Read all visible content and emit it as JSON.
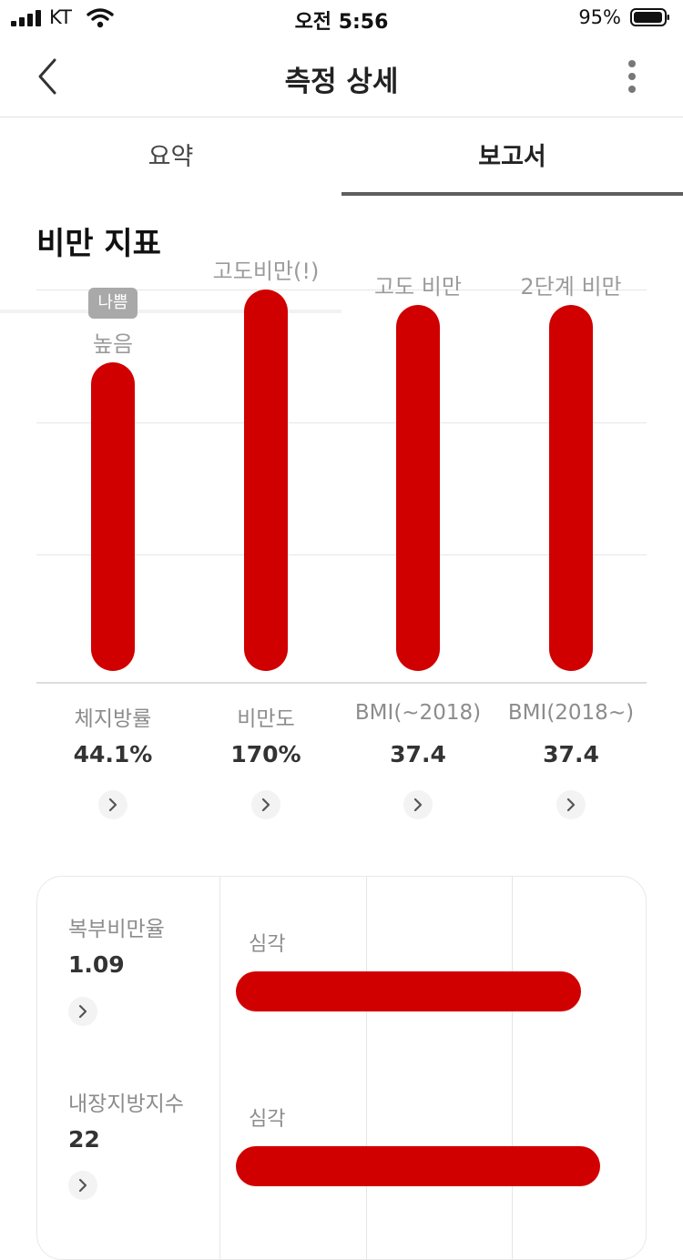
{
  "status_bar": {
    "carrier": "KT",
    "time": "오전 5:56",
    "battery": "95%"
  },
  "nav": {
    "title": "측정 상세"
  },
  "tabs": [
    {
      "label": "요약",
      "active": false
    },
    {
      "label": "보고서",
      "active": true
    }
  ],
  "section": {
    "title": "비만 지표"
  },
  "chart_data": {
    "type": "bar",
    "categories": [
      "체지방률",
      "비만도",
      "BMI(~2018)",
      "BMI(2018~)"
    ],
    "levels": [
      0.81,
      1.0,
      0.96,
      0.96
    ],
    "level_labels": [
      "높음",
      "고도비만(!)",
      "고도 비만",
      "2단계 비만"
    ],
    "badges": [
      "나쁨",
      "",
      "",
      ""
    ],
    "values": [
      "44.1%",
      "170%",
      "37.4",
      "37.4"
    ],
    "grid": true,
    "colors": {
      "bar": "#d10000"
    }
  },
  "card": {
    "items": [
      {
        "name": "복부비만율",
        "value": "1.09",
        "level": "심각",
        "fill": 0.92
      },
      {
        "name": "내장지방지수",
        "value": "22",
        "level": "심각",
        "fill": 0.97
      }
    ]
  },
  "colors": {
    "accent": "#d10000",
    "tab_indicator": "#5e5e5e"
  },
  "icons": {
    "back": "chevron-left-icon",
    "more": "more-vertical-icon",
    "detail": "chevron-right-icon"
  }
}
